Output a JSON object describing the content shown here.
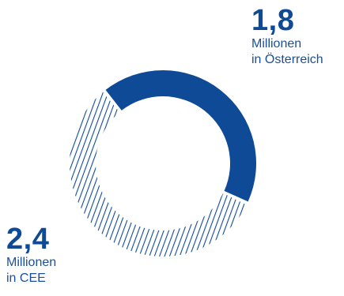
{
  "chart_data": {
    "type": "pie",
    "variant": "donut",
    "categories": [
      "in Österreich",
      "in CEE"
    ],
    "values": [
      1.8,
      2.4
    ],
    "unit": "Millionen",
    "series": [
      {
        "name": "in Österreich",
        "value": 1.8,
        "fill": "solid",
        "color": "#0f4a97"
      },
      {
        "name": "in CEE",
        "value": 2.4,
        "fill": "hatched",
        "color": "#0f4a97"
      }
    ]
  },
  "labels": {
    "austria": {
      "value": "1,8",
      "line1": "Millionen",
      "line2": "in Österreich"
    },
    "cee": {
      "value": "2,4",
      "line1": "Millionen",
      "line2": "in CEE"
    }
  }
}
